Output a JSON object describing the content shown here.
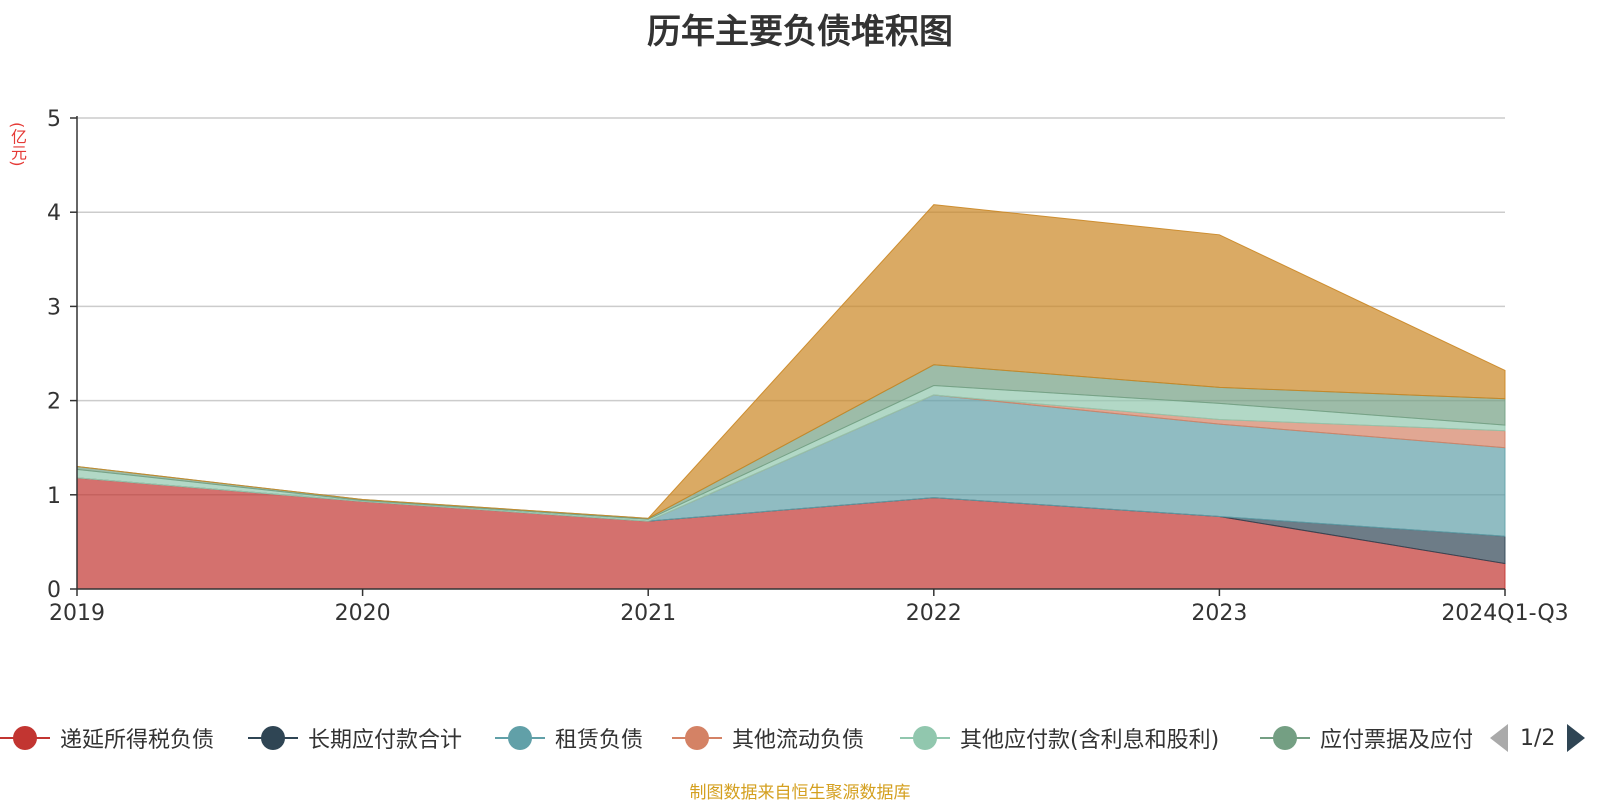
{
  "chart_data": {
    "type": "area",
    "stacked": true,
    "title": "历年主要负债堆积图",
    "ylabel": "(亿元)",
    "x": [
      "2019",
      "2020",
      "2021",
      "2022",
      "2023",
      "2024Q1-Q3"
    ],
    "ylim": [
      0,
      5
    ],
    "yticks": [
      "0",
      "1",
      "2",
      "3",
      "4",
      "5"
    ],
    "grid": true,
    "legend_position": "bottom",
    "series": [
      {
        "name": "递延所得税负债",
        "color": "#c23531",
        "values": [
          1.18,
          0.93,
          0.72,
          0.97,
          0.77,
          0.27
        ]
      },
      {
        "name": "长期应付款合计",
        "color": "#2f4554",
        "values": [
          0,
          0,
          0,
          0,
          0,
          0.29
        ]
      },
      {
        "name": "租赁负债",
        "color": "#61a0a8",
        "values": [
          0,
          0,
          0,
          1.09,
          0.98,
          0.94
        ]
      },
      {
        "name": "其他流动负债",
        "color": "#d48265",
        "values": [
          0,
          0,
          0,
          0,
          0.05,
          0.18
        ]
      },
      {
        "name": "其他应付款(含利息和股利)",
        "color": "#91c7ae",
        "values": [
          0.09,
          0.01,
          0.02,
          0.1,
          0.17,
          0.06
        ]
      },
      {
        "name": "应付票据及应付账款",
        "color": "#749f83",
        "values": [
          0.03,
          0.01,
          0.01,
          0.22,
          0.17,
          0.28
        ]
      },
      {
        "name": "",
        "color": "#ca8622",
        "values": [
          0,
          0,
          0,
          1.7,
          1.62,
          0.3
        ]
      }
    ]
  },
  "legend": {
    "pager_text": "1/2"
  },
  "footer": {
    "source_note": "制图数据来自恒生聚源数据库"
  }
}
